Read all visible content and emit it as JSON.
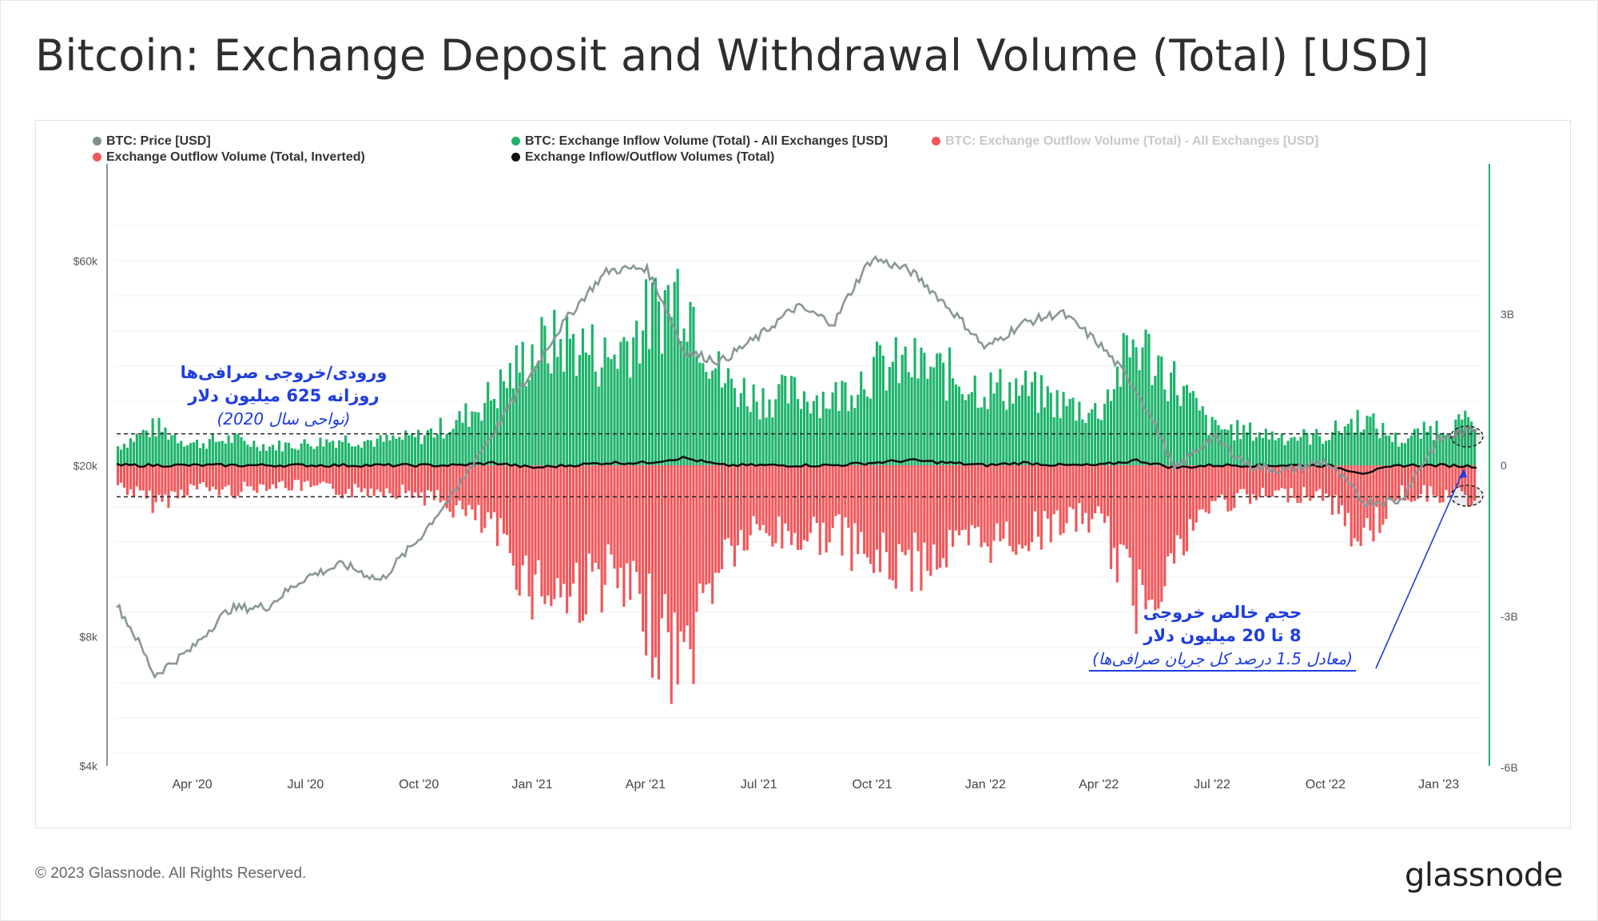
{
  "title": "Bitcoin: Exchange Deposit and Withdrawal Volume (Total) [USD]",
  "footer": "© 2023 Glassnode. All Rights Reserved.",
  "brand": "glassnode",
  "legend": [
    {
      "label": "BTC: Price [USD]",
      "color": "#7e8d8d",
      "faded": false
    },
    {
      "label": "BTC: Exchange Inflow Volume (Total) - All Exchanges [USD]",
      "color": "#1db36a",
      "faded": false
    },
    {
      "label": "BTC: Exchange Outflow Volume (Total) - All Exchanges [USD]",
      "color": "#f0575a",
      "faded": true
    },
    {
      "label": "Exchange Outflow Volume (Total, Inverted)",
      "color": "#f0575a",
      "faded": false
    },
    {
      "label": "Exchange Inflow/Outflow Volumes (Total)",
      "color": "#111111",
      "faded": false
    }
  ],
  "annotations": {
    "left": {
      "line1": "ورودی/خروجی صرافی‌ها",
      "line2": "روزانه 625 میلیون دلار",
      "line3": "(نواحی سال 2020)"
    },
    "right": {
      "line1": "حجم خالص خروجی",
      "line2": "8 تا 20 میلیون دلار",
      "line3": "(معادل 1.5 درصد کل جریان صرافی‌ها)"
    }
  },
  "chart_data": {
    "type": "bar",
    "title": "Bitcoin: Exchange Deposit and Withdrawal Volume (Total) [USD]",
    "x_ticks": [
      "Apr '20",
      "Jul '20",
      "Oct '20",
      "Jan '21",
      "Apr '21",
      "Jul '21",
      "Oct '21",
      "Jan '22",
      "Apr '22",
      "Jul '22",
      "Oct '22",
      "Jan '23"
    ],
    "y_left": {
      "scale": "log",
      "ticks": [
        "$4k",
        "$8k",
        "$20k",
        "$60k"
      ],
      "tick_values": [
        4000,
        8000,
        20000,
        60000
      ],
      "range": [
        4000,
        90000
      ]
    },
    "y_right": {
      "scale": "linear",
      "ticks": [
        "3B",
        "0",
        "-3B",
        "-6B"
      ],
      "tick_values": [
        3,
        0,
        -3,
        -6
      ],
      "range": [
        -6,
        6
      ],
      "unit": "B USD"
    },
    "reference_levels_B": [
      0.625,
      -0.625
    ],
    "months": [
      "2020-02",
      "2020-03",
      "2020-04",
      "2020-05",
      "2020-06",
      "2020-07",
      "2020-08",
      "2020-09",
      "2020-10",
      "2020-11",
      "2020-12",
      "2021-01",
      "2021-02",
      "2021-03",
      "2021-04",
      "2021-05",
      "2021-06",
      "2021-07",
      "2021-08",
      "2021-09",
      "2021-10",
      "2021-11",
      "2021-12",
      "2022-01",
      "2022-02",
      "2022-03",
      "2022-04",
      "2022-05",
      "2022-06",
      "2022-07",
      "2022-08",
      "2022-09",
      "2022-10",
      "2022-11",
      "2022-12",
      "2023-01",
      "2023-02"
    ],
    "series": [
      {
        "name": "BTC: Price [USD]",
        "unit": "USD",
        "values": [
          9500,
          6500,
          7500,
          9300,
          9400,
          11000,
          11800,
          10800,
          13500,
          17500,
          24000,
          33000,
          45000,
          57000,
          58000,
          37000,
          35000,
          40000,
          47000,
          43000,
          61000,
          57000,
          47000,
          37500,
          43000,
          45500,
          38500,
          30000,
          19500,
          23300,
          20000,
          19500,
          20500,
          16500,
          16600,
          23000,
          24500
        ]
      },
      {
        "name": "Exchange Inflow Volume (Total)",
        "unit": "B USD",
        "values": [
          0.4,
          0.8,
          0.45,
          0.55,
          0.4,
          0.45,
          0.55,
          0.5,
          0.6,
          0.9,
          1.5,
          2.4,
          2.6,
          2.2,
          3.0,
          3.8,
          1.8,
          1.4,
          1.5,
          1.4,
          2.0,
          2.1,
          1.9,
          1.6,
          1.6,
          1.3,
          1.1,
          2.6,
          1.8,
          0.8,
          0.7,
          0.6,
          0.6,
          1.0,
          0.5,
          0.8,
          0.9
        ]
      },
      {
        "name": "Exchange Outflow Volume (Total, Inverted)",
        "unit": "B USD",
        "values": [
          -0.4,
          -0.8,
          -0.45,
          -0.55,
          -0.4,
          -0.45,
          -0.55,
          -0.5,
          -0.6,
          -0.9,
          -1.4,
          -2.5,
          -2.7,
          -2.3,
          -3.2,
          -4.2,
          -1.9,
          -1.4,
          -1.5,
          -1.4,
          -2.0,
          -2.1,
          -1.8,
          -1.6,
          -1.5,
          -1.2,
          -1.1,
          -2.8,
          -2.0,
          -0.8,
          -0.7,
          -0.6,
          -0.6,
          -1.6,
          -0.6,
          -0.6,
          -0.7
        ]
      },
      {
        "name": "Exchange Inflow/Outflow Volumes (Total)",
        "unit": "B USD",
        "values": [
          0,
          0,
          0,
          0,
          0,
          0,
          0,
          0,
          0,
          0,
          0.05,
          -0.05,
          0,
          0.05,
          0.05,
          0.15,
          0,
          0,
          0,
          0,
          0.05,
          0.1,
          0.05,
          0,
          0.05,
          0,
          0,
          0.1,
          -0.05,
          0,
          0,
          0,
          0,
          -0.15,
          0,
          0,
          -0.02
        ]
      }
    ]
  }
}
